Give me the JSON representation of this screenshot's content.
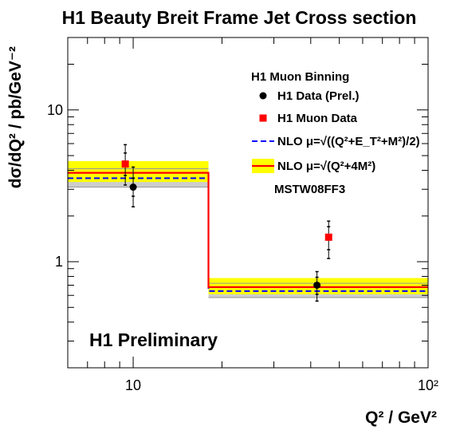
{
  "chart_data": {
    "type": "scatter",
    "title": "H1 Beauty Breit Frame Jet Cross section",
    "xlabel": "Q² / GeV²",
    "ylabel": "dσ/dQ² / pb/GeV⁻²",
    "xscale": "log",
    "yscale": "log",
    "xlim": [
      6,
      100
    ],
    "ylim": [
      0.2,
      30
    ],
    "x_ticks": [
      {
        "value": 10,
        "label": "10"
      },
      {
        "value": 100,
        "label": "10²"
      }
    ],
    "y_ticks": [
      {
        "value": 1,
        "label": "1"
      },
      {
        "value": 10,
        "label": "10"
      }
    ],
    "bins": [
      [
        6,
        18
      ],
      [
        18,
        100
      ]
    ],
    "legend_title": "H1 Muon Binning",
    "legend_position": "top-right",
    "annotation": "H1 Preliminary",
    "pdf_label": "MSTW08FF3",
    "series": [
      {
        "name": "H1 Data (Prel.)",
        "kind": "points",
        "marker": "circle",
        "color": "#000000",
        "x": [
          10,
          42
        ],
        "y": [
          3.1,
          0.7
        ],
        "err_stat": [
          [
            2.7,
            3.55
          ],
          [
            0.61,
            0.79
          ]
        ],
        "err_tot": [
          [
            2.3,
            4.2
          ],
          [
            0.55,
            0.86
          ]
        ]
      },
      {
        "name": "H1 Muon Data",
        "kind": "points",
        "marker": "square",
        "color": "#ff0000",
        "x": [
          9.4,
          46
        ],
        "y": [
          4.4,
          1.45
        ],
        "err_stat": [
          [
            3.7,
            5.2
          ],
          [
            1.2,
            1.7
          ]
        ],
        "err_tot": [
          [
            3.2,
            5.9
          ],
          [
            1.05,
            1.85
          ]
        ]
      },
      {
        "name": "NLO μ=√((Q²+E_T²+M²)/2)",
        "kind": "histogram",
        "style": "dashed",
        "color": "#0000ff",
        "values": [
          3.55,
          0.64
        ],
        "band": [
          [
            3.1,
            4.1
          ],
          [
            0.58,
            0.72
          ]
        ],
        "band_color": "#c8c8c8"
      },
      {
        "name": "NLO μ=√(Q²+4M²)",
        "kind": "histogram",
        "style": "solid",
        "color": "#ff0000",
        "values": [
          3.85,
          0.68
        ],
        "band": [
          [
            3.35,
            4.6
          ],
          [
            0.61,
            0.78
          ]
        ],
        "band_color": "#ffff00"
      }
    ]
  }
}
